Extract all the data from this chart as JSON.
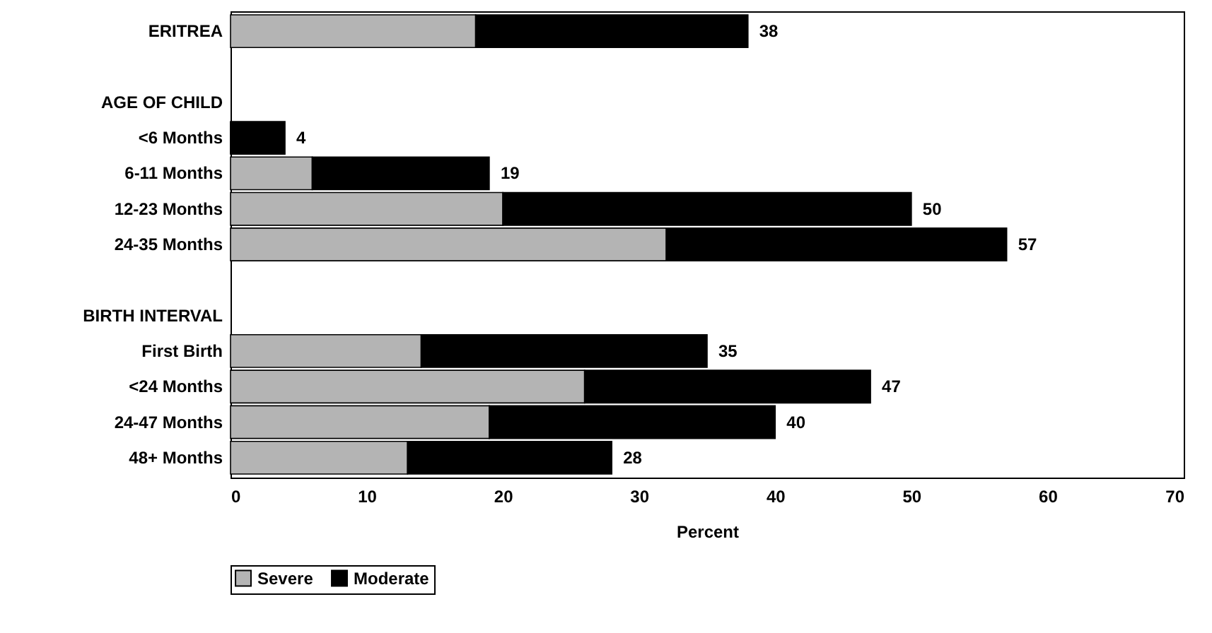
{
  "chart_data": {
    "type": "bar",
    "orientation": "horizontal",
    "stacked": true,
    "categories": [
      "ERITREA",
      null,
      "AGE OF CHILD",
      "<6 Months",
      "6-11 Months",
      "12-23 Months",
      "24-35 Months",
      null,
      "BIRTH INTERVAL",
      "First Birth",
      "<24 Months",
      "24-47 Months",
      "48+ Months"
    ],
    "series": [
      {
        "name": "Severe",
        "color": "#b4b4b4",
        "values": [
          18,
          null,
          null,
          0,
          6,
          20,
          32,
          null,
          null,
          14,
          26,
          19,
          13
        ]
      },
      {
        "name": "Moderate",
        "color": "#000000",
        "values": [
          20,
          null,
          null,
          4,
          13,
          30,
          25,
          null,
          null,
          21,
          21,
          21,
          15
        ]
      }
    ],
    "totals": [
      "38",
      null,
      null,
      "4",
      "19",
      "50",
      "57",
      null,
      null,
      "35",
      "47",
      "40",
      "28"
    ],
    "xlabel": "Percent",
    "xlim": [
      0,
      70
    ],
    "xticks": [
      0,
      10,
      20,
      30,
      40,
      50,
      60,
      70
    ],
    "grid": false,
    "legend": "bottom"
  }
}
